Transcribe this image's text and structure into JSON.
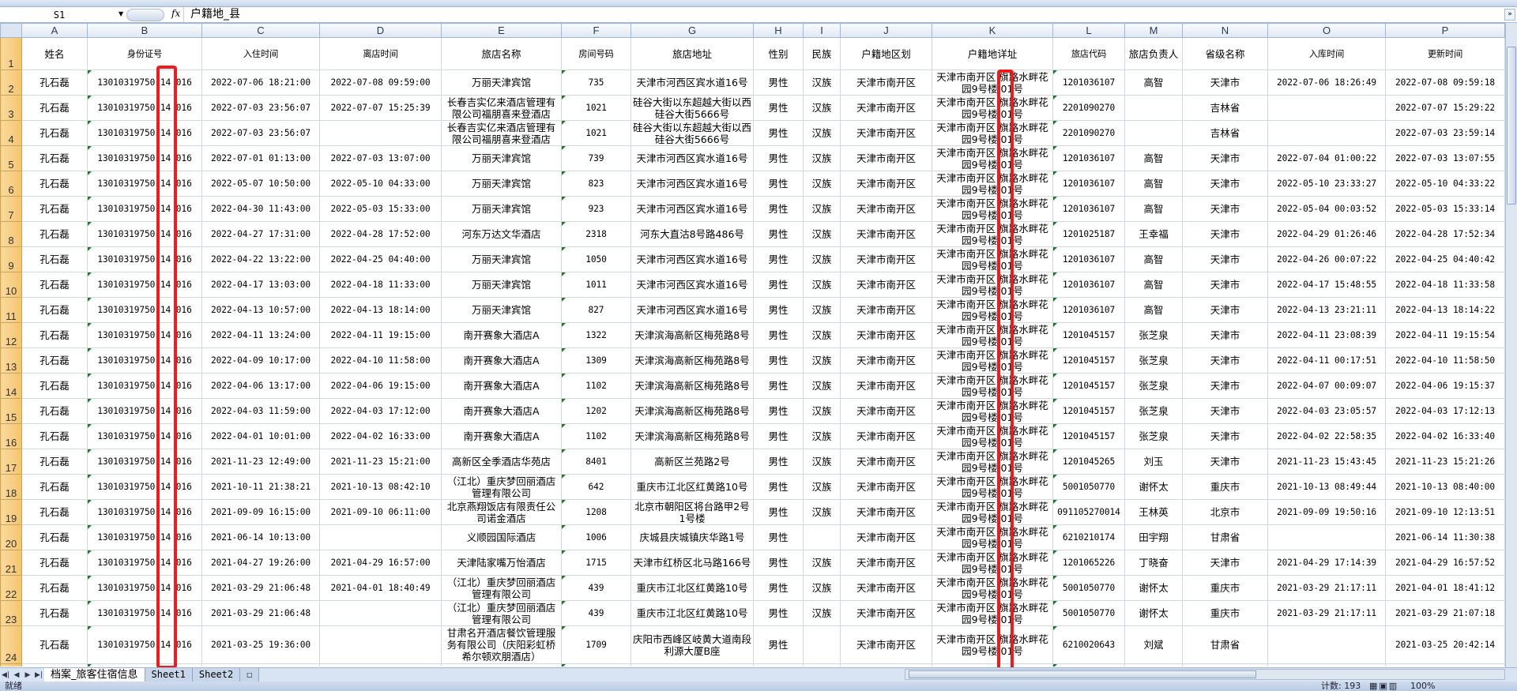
{
  "formula_bar": {
    "name_box": "S1",
    "fx": "fx",
    "value": "户籍地_县"
  },
  "columns": [
    "A",
    "B",
    "C",
    "D",
    "E",
    "F",
    "G",
    "H",
    "I",
    "J",
    "K",
    "L",
    "M",
    "N",
    "O",
    "P"
  ],
  "header_row": [
    "姓名",
    "身份证号",
    "入住时间",
    "离店时间",
    "旅店名称",
    "房间号码",
    "旅店地址",
    "性别",
    "民族",
    "户籍地区划",
    "户籍地详址",
    "旅店代码",
    "旅店负责人",
    "省级名称",
    "入库时间",
    "更新时间"
  ],
  "rows": [
    [
      "孔石磊",
      "13010319750 14 016",
      "2022-07-06 18:21:00",
      "2022-07-08 09:59:00",
      "万丽天津宾馆",
      "735",
      "天津市河西区宾水道16号",
      "男性",
      "汉族",
      "天津市南开区",
      "天津市南开区 旗路水畔花园9号楼 01号",
      "1201036107",
      "高智",
      "天津市",
      "2022-07-06 18:26:49",
      "2022-07-08 09:59:18"
    ],
    [
      "孔石磊",
      "13010319750 14 016",
      "2022-07-03 23:56:07",
      "2022-07-07 15:25:39",
      "长春吉实亿来酒店管理有限公司福朋喜来登酒店",
      "1021",
      "硅谷大街以东超越大街以西硅谷大街5666号",
      "男性",
      "汉族",
      "天津市南开区",
      "天津市南开区 旗路水畔花园9号楼 01号",
      "2201090270",
      "",
      "吉林省",
      "",
      "2022-07-07 15:29:22"
    ],
    [
      "孔石磊",
      "13010319750 14 016",
      "2022-07-03 23:56:07",
      "",
      "长春吉实亿来酒店管理有限公司福朋喜来登酒店",
      "1021",
      "硅谷大街以东超越大街以西硅谷大街5666号",
      "男性",
      "汉族",
      "天津市南开区",
      "天津市南开区 旗路水畔花园9号楼 01号",
      "2201090270",
      "",
      "吉林省",
      "",
      "2022-07-03 23:59:14"
    ],
    [
      "孔石磊",
      "13010319750 14 016",
      "2022-07-01 01:13:00",
      "2022-07-03 13:07:00",
      "万丽天津宾馆",
      "739",
      "天津市河西区宾水道16号",
      "男性",
      "汉族",
      "天津市南开区",
      "天津市南开区 旗路水畔花园9号楼 01号",
      "1201036107",
      "高智",
      "天津市",
      "2022-07-04 01:00:22",
      "2022-07-03 13:07:55"
    ],
    [
      "孔石磊",
      "13010319750 14 016",
      "2022-05-07 10:50:00",
      "2022-05-10 04:33:00",
      "万丽天津宾馆",
      "823",
      "天津市河西区宾水道16号",
      "男性",
      "汉族",
      "天津市南开区",
      "天津市南开区 旗路水畔花园9号楼 01号",
      "1201036107",
      "高智",
      "天津市",
      "2022-05-10 23:33:27",
      "2022-05-10 04:33:22"
    ],
    [
      "孔石磊",
      "13010319750 14 016",
      "2022-04-30 11:43:00",
      "2022-05-03 15:33:00",
      "万丽天津宾馆",
      "923",
      "天津市河西区宾水道16号",
      "男性",
      "汉族",
      "天津市南开区",
      "天津市南开区 旗路水畔花园9号楼 01号",
      "1201036107",
      "高智",
      "天津市",
      "2022-05-04 00:03:52",
      "2022-05-03 15:33:14"
    ],
    [
      "孔石磊",
      "13010319750 14 016",
      "2022-04-27 17:31:00",
      "2022-04-28 17:52:00",
      "河东万达文华酒店",
      "2318",
      "河东大直沽8号路486号",
      "男性",
      "汉族",
      "天津市南开区",
      "天津市南开区 旗路水畔花园9号楼 01号",
      "1201025187",
      "王幸福",
      "天津市",
      "2022-04-29 01:26:46",
      "2022-04-28 17:52:34"
    ],
    [
      "孔石磊",
      "13010319750 14 016",
      "2022-04-22 13:22:00",
      "2022-04-25 04:40:00",
      "万丽天津宾馆",
      "1050",
      "天津市河西区宾水道16号",
      "男性",
      "汉族",
      "天津市南开区",
      "天津市南开区 旗路水畔花园9号楼 01号",
      "1201036107",
      "高智",
      "天津市",
      "2022-04-26 00:07:22",
      "2022-04-25 04:40:42"
    ],
    [
      "孔石磊",
      "13010319750 14 016",
      "2022-04-17 13:03:00",
      "2022-04-18 11:33:00",
      "万丽天津宾馆",
      "1011",
      "天津市河西区宾水道16号",
      "男性",
      "汉族",
      "天津市南开区",
      "天津市南开区 旗路水畔花园9号楼 01号",
      "1201036107",
      "高智",
      "天津市",
      "2022-04-17 15:48:55",
      "2022-04-18 11:33:58"
    ],
    [
      "孔石磊",
      "13010319750 14 016",
      "2022-04-13 10:57:00",
      "2022-04-13 18:14:00",
      "万丽天津宾馆",
      "827",
      "天津市河西区宾水道16号",
      "男性",
      "汉族",
      "天津市南开区",
      "天津市南开区 旗路水畔花园9号楼 01号",
      "1201036107",
      "高智",
      "天津市",
      "2022-04-13 23:21:11",
      "2022-04-13 18:14:22"
    ],
    [
      "孔石磊",
      "13010319750 14 016",
      "2022-04-11 13:24:00",
      "2022-04-11 19:15:00",
      "南开赛象大酒店A",
      "1322",
      "天津滨海高新区梅苑路8号",
      "男性",
      "汉族",
      "天津市南开区",
      "天津市南开区 旗路水畔花园9号楼 01号",
      "1201045157",
      "张芝泉",
      "天津市",
      "2022-04-11 23:08:39",
      "2022-04-11 19:15:54"
    ],
    [
      "孔石磊",
      "13010319750 14 016",
      "2022-04-09 10:17:00",
      "2022-04-10 11:58:00",
      "南开赛象大酒店A",
      "1309",
      "天津滨海高新区梅苑路8号",
      "男性",
      "汉族",
      "天津市南开区",
      "天津市南开区 旗路水畔花园9号楼 01号",
      "1201045157",
      "张芝泉",
      "天津市",
      "2022-04-11 00:17:51",
      "2022-04-10 11:58:50"
    ],
    [
      "孔石磊",
      "13010319750 14 016",
      "2022-04-06 13:17:00",
      "2022-04-06 19:15:00",
      "南开赛象大酒店A",
      "1102",
      "天津滨海高新区梅苑路8号",
      "男性",
      "汉族",
      "天津市南开区",
      "天津市南开区 旗路水畔花园9号楼 01号",
      "1201045157",
      "张芝泉",
      "天津市",
      "2022-04-07 00:09:07",
      "2022-04-06 19:15:37"
    ],
    [
      "孔石磊",
      "13010319750 14 016",
      "2022-04-03 11:59:00",
      "2022-04-03 17:12:00",
      "南开赛象大酒店A",
      "1202",
      "天津滨海高新区梅苑路8号",
      "男性",
      "汉族",
      "天津市南开区",
      "天津市南开区 旗路水畔花园9号楼 01号",
      "1201045157",
      "张芝泉",
      "天津市",
      "2022-04-03 23:05:57",
      "2022-04-03 17:12:13"
    ],
    [
      "孔石磊",
      "13010319750 14 016",
      "2022-04-01 10:01:00",
      "2022-04-02 16:33:00",
      "南开赛象大酒店A",
      "1102",
      "天津滨海高新区梅苑路8号",
      "男性",
      "汉族",
      "天津市南开区",
      "天津市南开区 旗路水畔花园9号楼 01号",
      "1201045157",
      "张芝泉",
      "天津市",
      "2022-04-02 22:58:35",
      "2022-04-02 16:33:40"
    ],
    [
      "孔石磊",
      "13010319750 14 016",
      "2021-11-23 12:49:00",
      "2021-11-23 15:21:00",
      "高新区全季酒店华苑店",
      "8401",
      "高新区兰苑路2号",
      "男性",
      "汉族",
      "天津市南开区",
      "天津市南开区 旗路水畔花园9号楼 01号",
      "1201045265",
      "刘玉",
      "天津市",
      "2021-11-23 15:43:45",
      "2021-11-23 15:21:26"
    ],
    [
      "孔石磊",
      "13010319750 14 016",
      "2021-10-11 21:38:21",
      "2021-10-13 08:42:10",
      "（江北）重庆梦回丽酒店管理有限公司",
      "642",
      "重庆市江北区红黄路10号",
      "男性",
      "汉族",
      "天津市南开区",
      "天津市南开区 旗路水畔花园9号楼 01号",
      "5001050770",
      "谢怀太",
      "重庆市",
      "2021-10-13 08:49:44",
      "2021-10-13 08:40:00"
    ],
    [
      "孔石磊",
      "13010319750 14 016",
      "2021-09-09 16:15:00",
      "2021-09-10 06:11:00",
      "北京燕翔饭店有限责任公司诺金酒店",
      "1208",
      "北京市朝阳区将台路甲2号1号楼",
      "男性",
      "汉族",
      "天津市南开区",
      "天津市南开区 旗路水畔花园9号楼 01号",
      "091105270014",
      "王林英",
      "北京市",
      "2021-09-09 19:50:16",
      "2021-09-10 12:13:51"
    ],
    [
      "孔石磊",
      "13010319750 14 016",
      "2021-06-14 10:13:00",
      "",
      "义顺园国际酒店",
      "1006",
      "庆城县庆城镇庆华路1号",
      "男性",
      "",
      "天津市南开区",
      "天津市南开区 旗路水畔花园9号楼 01号",
      "6210210174",
      "田宇翔",
      "甘肃省",
      "",
      "2021-06-14 11:30:38"
    ],
    [
      "孔石磊",
      "13010319750 14 016",
      "2021-04-27 19:26:00",
      "2021-04-29 16:57:00",
      "天津陆家嘴万怡酒店",
      "1715",
      "天津市红桥区北马路166号",
      "男性",
      "汉族",
      "天津市南开区",
      "天津市南开区 旗路水畔花园9号楼 01号",
      "1201065226",
      "丁晓奋",
      "天津市",
      "2021-04-29 17:14:39",
      "2021-04-29 16:57:52"
    ],
    [
      "孔石磊",
      "13010319750 14 016",
      "2021-03-29 21:06:48",
      "2021-04-01 18:40:49",
      "（江北）重庆梦回丽酒店管理有限公司",
      "439",
      "重庆市江北区红黄路10号",
      "男性",
      "汉族",
      "天津市南开区",
      "天津市南开区 旗路水畔花园9号楼 01号",
      "5001050770",
      "谢怀太",
      "重庆市",
      "2021-03-29 21:17:11",
      "2021-04-01 18:41:12"
    ],
    [
      "孔石磊",
      "13010319750 14 016",
      "2021-03-29 21:06:48",
      "",
      "（江北）重庆梦回丽酒店管理有限公司",
      "439",
      "重庆市江北区红黄路10号",
      "男性",
      "汉族",
      "天津市南开区",
      "天津市南开区 旗路水畔花园9号楼 01号",
      "5001050770",
      "谢怀太",
      "重庆市",
      "2021-03-29 21:17:11",
      "2021-03-29 21:07:18"
    ],
    [
      "孔石磊",
      "13010319750 14 016",
      "2021-03-25 19:36:00",
      "",
      "甘肃名开酒店餐饮管理服务有限公司（庆阳彩虹桥希尔顿欢朋酒店）",
      "1709",
      "庆阳市西峰区岐黄大道南段利源大厦B座",
      "男性",
      "",
      "天津市南开区",
      "天津市南开区 旗路水畔花园9号楼 01号",
      "6210020643",
      "刘斌",
      "甘肃省",
      "",
      "2021-03-25 20:42:14"
    ],
    [
      "",
      "",
      "",
      "",
      "",
      "",
      "",
      "",
      "",
      "",
      "天津市南开区 旗路水畔",
      "",
      "",
      "",
      "",
      ""
    ]
  ],
  "sheet_tabs": [
    "档案_旅客住宿信息",
    "Sheet1",
    "Sheet2"
  ],
  "active_sheet": "档案_旅客住宿信息",
  "status": {
    "ready": "就绪",
    "count": "计数: 193",
    "zoom": "100%"
  },
  "highlight_color": "#ee1c1c"
}
